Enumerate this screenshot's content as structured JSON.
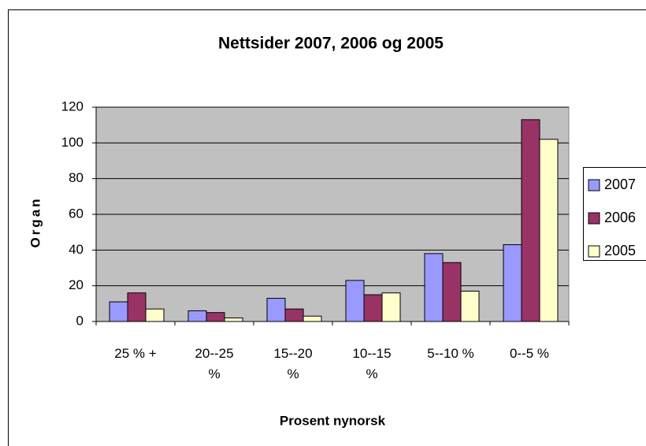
{
  "chart_data": {
    "type": "bar",
    "title": "Nettsider 2007, 2006 og 2005",
    "x_label": "Prosent nynorsk",
    "y_label": "Organ",
    "categories": [
      "25 % +",
      "20--25 %",
      "15--20 %",
      "10--15 %",
      "5--10 %",
      "0--5 %"
    ],
    "series": [
      {
        "name": "2007",
        "color": "#9999ff",
        "values": [
          11,
          6,
          13,
          23,
          38,
          43
        ]
      },
      {
        "name": "2006",
        "color": "#993366",
        "values": [
          16,
          5,
          7,
          15,
          33,
          113
        ]
      },
      {
        "name": "2005",
        "color": "#ffffcc",
        "values": [
          7,
          2,
          3,
          16,
          17,
          102
        ]
      }
    ],
    "ylim": [
      0,
      120
    ],
    "yticks": [
      0,
      20,
      40,
      60,
      80,
      100,
      120
    ],
    "grid": true,
    "legend": "right"
  }
}
